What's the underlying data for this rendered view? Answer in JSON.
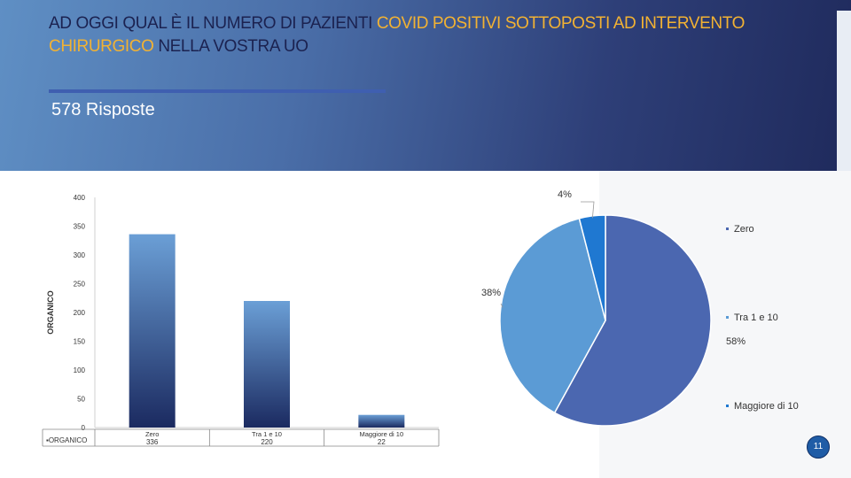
{
  "slide": {
    "title_part1": "AD OGGI QUAL È IL NUMERO DI PAZIENTI ",
    "title_highlight1": "COVID POSITIVI SOTTOPOSTI AD INTERVENTO CHIRURGICO",
    "title_part2": " NELLA VOSTRA UO",
    "responses": "578 Risposte",
    "page_number": "11",
    "accent_color": "#f2b233"
  },
  "chart_data": [
    {
      "type": "bar",
      "categories": [
        "Zero",
        "Tra 1 e 10",
        "Maggiore di 10"
      ],
      "series": [
        {
          "name": "ORGANICO",
          "values": [
            336,
            220,
            22
          ]
        }
      ],
      "ylabel": "ORGANICO",
      "ylim": [
        0,
        400
      ],
      "yticks": [
        0,
        50,
        100,
        150,
        200,
        250,
        300,
        350,
        400
      ],
      "table_row_label": "ORGANICO",
      "grid": false,
      "colors": {
        "bar_top": "#6b9fd6",
        "bar_bottom": "#1b2a60"
      }
    },
    {
      "type": "pie",
      "slices": [
        {
          "label": "Zero",
          "value": 58,
          "display": "58%",
          "color": "#4b67b0"
        },
        {
          "label": "Tra 1 e 10",
          "value": 38,
          "display": "38%",
          "color": "#5b9bd5"
        },
        {
          "label": "Maggiore di 10",
          "value": 4,
          "display": "4%",
          "color": "#1f78d1"
        }
      ],
      "legend_position": "right"
    }
  ]
}
